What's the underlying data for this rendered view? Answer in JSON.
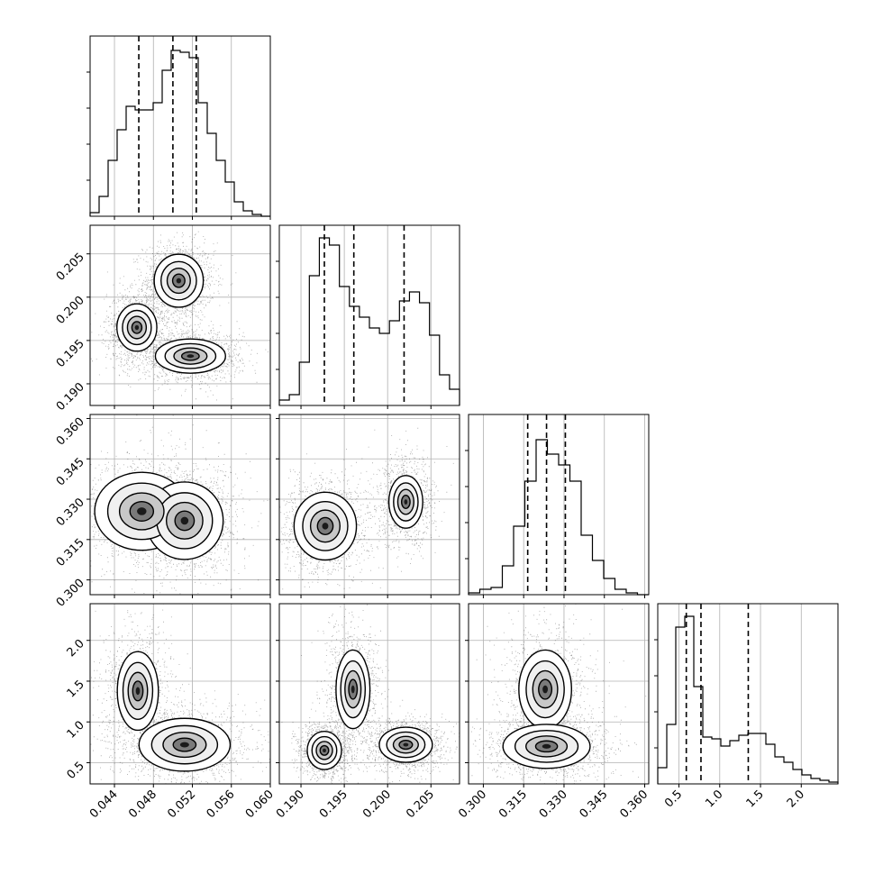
{
  "chart_data": {
    "type": "corner",
    "grid": true,
    "parameters": [
      {
        "range": [
          0.0415,
          0.06
        ],
        "ticks": [
          0.044,
          0.048,
          0.052,
          0.056,
          0.06
        ],
        "tick_labels": [
          "0.044",
          "0.048",
          "0.052",
          "0.056",
          "0.060"
        ],
        "quantiles": [
          0.0465,
          0.05,
          0.0524
        ]
      },
      {
        "range": [
          0.1875,
          0.2083
        ],
        "ticks": [
          0.19,
          0.195,
          0.2,
          0.205
        ],
        "tick_labels": [
          "0.190",
          "0.195",
          "0.200",
          "0.205"
        ],
        "quantiles": [
          0.1927,
          0.1961,
          0.2019
        ]
      },
      {
        "range": [
          0.2945,
          0.3615
        ],
        "ticks": [
          0.3,
          0.315,
          0.33,
          0.345,
          0.36
        ],
        "tick_labels": [
          "0.300",
          "0.315",
          "0.330",
          "0.345",
          "0.360"
        ],
        "quantiles": [
          0.3165,
          0.3235,
          0.3305
        ]
      },
      {
        "range": [
          0.24,
          2.45
        ],
        "ticks": [
          0.5,
          1.0,
          1.5,
          2.0
        ],
        "tick_labels": [
          "0.5",
          "1.0",
          "1.5",
          "2.0"
        ],
        "quantiles": [
          0.59,
          0.77,
          1.35
        ]
      }
    ],
    "histograms": [
      [
        0.2,
        1.1,
        3.1,
        4.8,
        6.1,
        5.9,
        5.9,
        6.3,
        8.1,
        9.2,
        9.1,
        8.8,
        6.3,
        4.6,
        3.1,
        1.9,
        0.8,
        0.3,
        0.1,
        0
      ],
      [
        0.3,
        0.6,
        2.4,
        7.2,
        9.3,
        8.9,
        6.6,
        5.5,
        4.9,
        4.3,
        4.0,
        4.7,
        5.8,
        6.3,
        5.7,
        3.9,
        1.7,
        0.9
      ],
      [
        0.1,
        0.3,
        0.4,
        1.6,
        3.8,
        6.3,
        8.6,
        7.8,
        7.2,
        6.3,
        3.3,
        1.9,
        0.9,
        0.3,
        0.1,
        0
      ],
      [
        0.9,
        3.3,
        8.7,
        9.3,
        5.4,
        2.6,
        2.5,
        2.1,
        2.4,
        2.7,
        2.8,
        2.8,
        2.2,
        1.5,
        1.2,
        0.8,
        0.5,
        0.3,
        0.2,
        0.1
      ]
    ],
    "hist_ymax": [
      10,
      10,
      10,
      10
    ],
    "joint_modes": [
      {
        "row": 1,
        "col": 0,
        "modes": [
          [
            0.0506,
            0.2019,
            0.0014,
            0.0017,
            1.0
          ],
          [
            0.0463,
            0.1965,
            0.0012,
            0.0016,
            0.9
          ],
          [
            0.0518,
            0.1932,
            0.002,
            0.0011,
            1.0
          ]
        ]
      },
      {
        "row": 2,
        "col": 0,
        "modes": [
          [
            0.0468,
            0.3255,
            0.003,
            0.009,
            0.8
          ],
          [
            0.0512,
            0.322,
            0.0022,
            0.008,
            1.0
          ]
        ]
      },
      {
        "row": 2,
        "col": 1,
        "modes": [
          [
            0.1928,
            0.32,
            0.002,
            0.007,
            1.0
          ],
          [
            0.2021,
            0.329,
            0.0013,
            0.0065,
            0.7
          ]
        ]
      },
      {
        "row": 3,
        "col": 0,
        "modes": [
          [
            0.0464,
            1.38,
            0.0014,
            0.32,
            0.7
          ],
          [
            0.0512,
            0.72,
            0.0026,
            0.18,
            1.0
          ]
        ]
      },
      {
        "row": 3,
        "col": 1,
        "modes": [
          [
            0.1927,
            0.65,
            0.0011,
            0.13,
            1.0
          ],
          [
            0.196,
            1.4,
            0.0013,
            0.32,
            0.7
          ],
          [
            0.2021,
            0.72,
            0.0017,
            0.12,
            1.0
          ]
        ]
      },
      {
        "row": 3,
        "col": 2,
        "modes": [
          [
            0.323,
            1.4,
            0.0065,
            0.32,
            0.7
          ],
          [
            0.3235,
            0.7,
            0.009,
            0.15,
            1.0
          ]
        ]
      }
    ]
  }
}
